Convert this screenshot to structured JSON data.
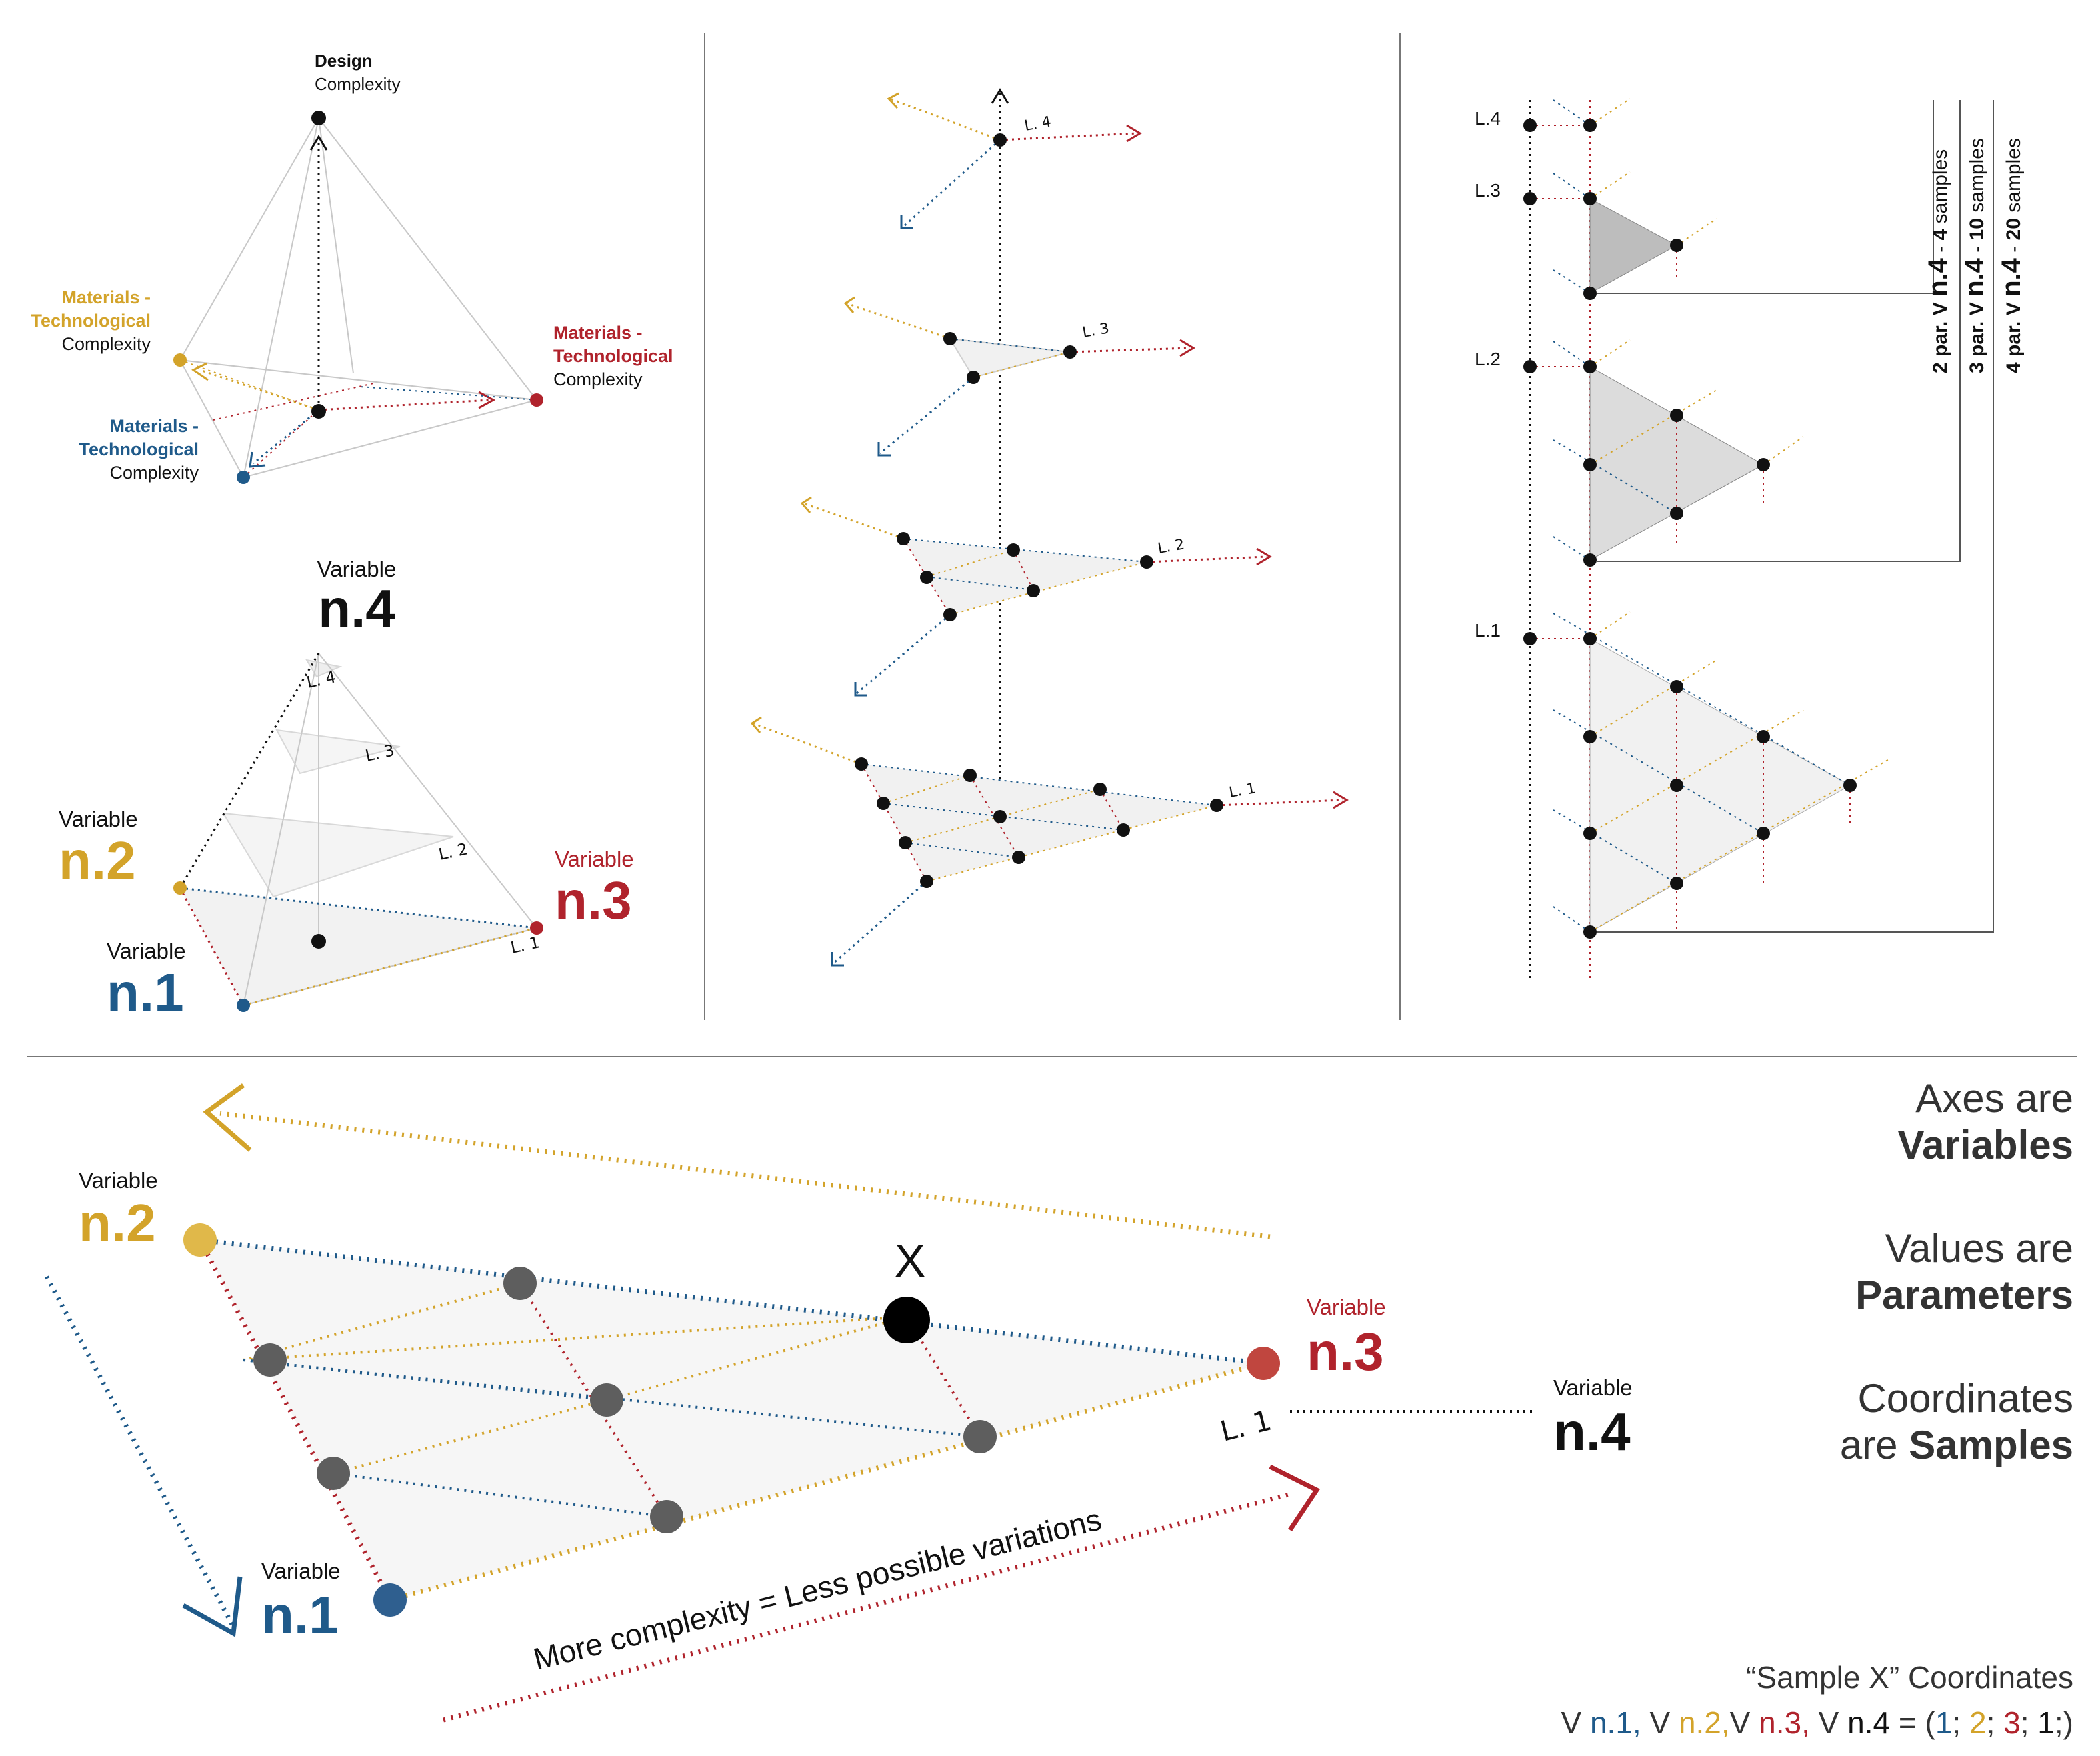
{
  "panel1": {
    "top_title": "Design",
    "top_sub": "Complexity",
    "left_line1": "Materials -",
    "left_line2": "Technological",
    "left_line3": "Complexity",
    "right_line1": "Materials -",
    "right_line2": "Technological",
    "right_line3": "Complexity",
    "blue_line1": "Materials -",
    "blue_line2": "Technological",
    "blue_line3": "Complexity"
  },
  "panel2": {
    "var_word": "Variable",
    "n4": "n.4",
    "n2": "n.2",
    "n3": "n.3",
    "n1": "n.1",
    "levels": [
      "L. 4",
      "L. 3",
      "L. 2",
      "L. 1"
    ]
  },
  "panel3": {
    "levels": [
      "L. 4",
      "L. 3",
      "L. 2",
      "L. 1"
    ]
  },
  "panel4": {
    "levels": [
      "L.4",
      "L.3",
      "L.2",
      "L.1"
    ],
    "samples": [
      {
        "prefix": "2 par. V ",
        "var": "n.4",
        "sep": " -  ",
        "count": "4",
        "suffix": " samples"
      },
      {
        "prefix": "3 par. V ",
        "var": "n.4",
        "sep": " - ",
        "count": "10",
        "suffix": " samples"
      },
      {
        "prefix": "4 par. V ",
        "var": "n.4",
        "sep": " - ",
        "count": "20",
        "suffix": " samples"
      }
    ]
  },
  "bottom": {
    "var_word": "Variable",
    "n2": "n.2",
    "n1": "n.1",
    "n3": "n.3",
    "n4": "n.4",
    "x_label": "X",
    "level": "L. 1",
    "diag_text": "More complexity = Less possible variations",
    "axes_1": "Axes are",
    "axes_2": "Variables",
    "values_1": "Values are",
    "values_2": "Parameters",
    "coords_1": "Coordinates",
    "coords_2a": "are ",
    "coords_2b": "Samples",
    "sample_title": "“Sample X” Coordinates",
    "formula": {
      "v1": "V ",
      "n1": "n.1,",
      "v2": " V ",
      "n2": "n.2,",
      "v3": "V ",
      "n3": "n.3,",
      "v4": " V ",
      "n4": "n.4",
      "eq": " = (",
      "c1": "1",
      "s1": "; ",
      "c2": "2",
      "s2": "; ",
      "c3": "3",
      "s3": "; ",
      "c4": "1",
      "end": ";)"
    }
  },
  "colors": {
    "yellow": "#d3a32a",
    "red": "#b0232c",
    "blue": "#1f5a8a",
    "black": "#111111",
    "gray_fill": "#f2f2f2",
    "dark_fill": "#bdbdbd"
  }
}
